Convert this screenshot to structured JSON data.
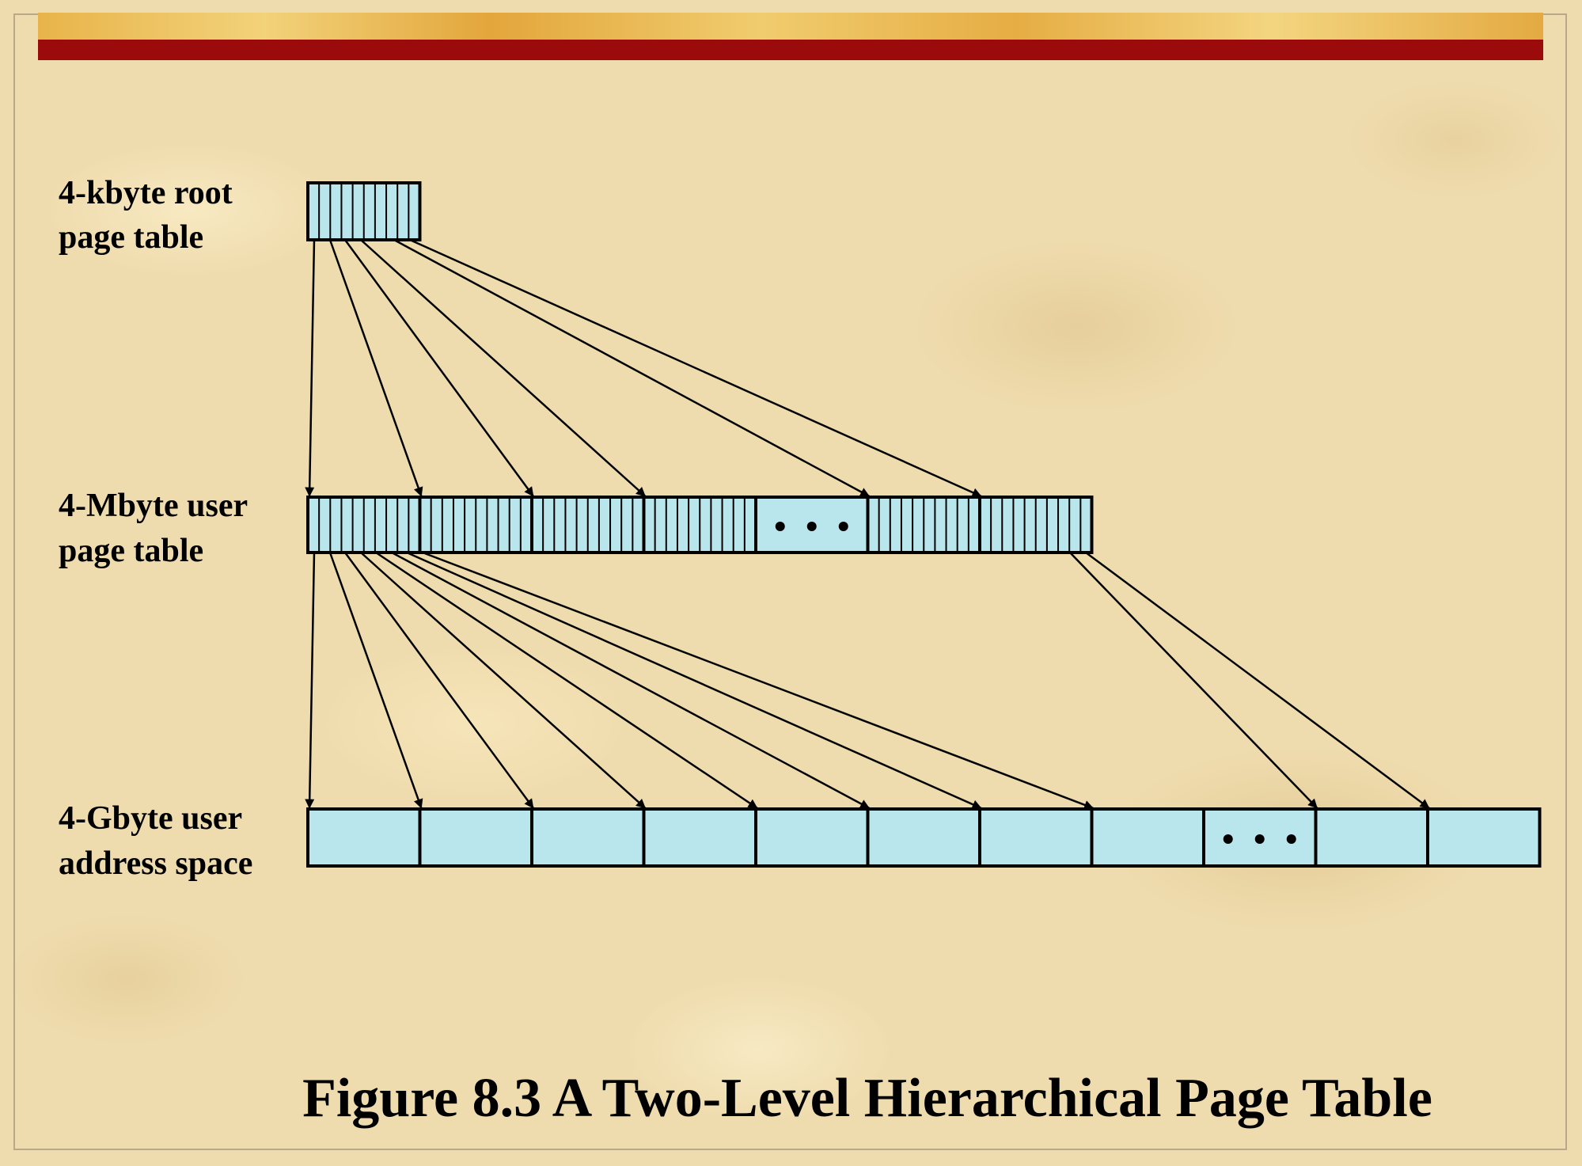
{
  "labels": {
    "root_table": [
      "4-kbyte root",
      "page table"
    ],
    "user_table": [
      "4-Mbyte user",
      "page table"
    ],
    "address_space": [
      "4-Gbyte user",
      "address space"
    ]
  },
  "caption": "Figure 8.3  A Two-Level Hierarchical Page Table",
  "colors": {
    "cell_fill": "#b8e6ec",
    "outline": "#000000",
    "accent_bar": "#9b0b0b"
  }
}
